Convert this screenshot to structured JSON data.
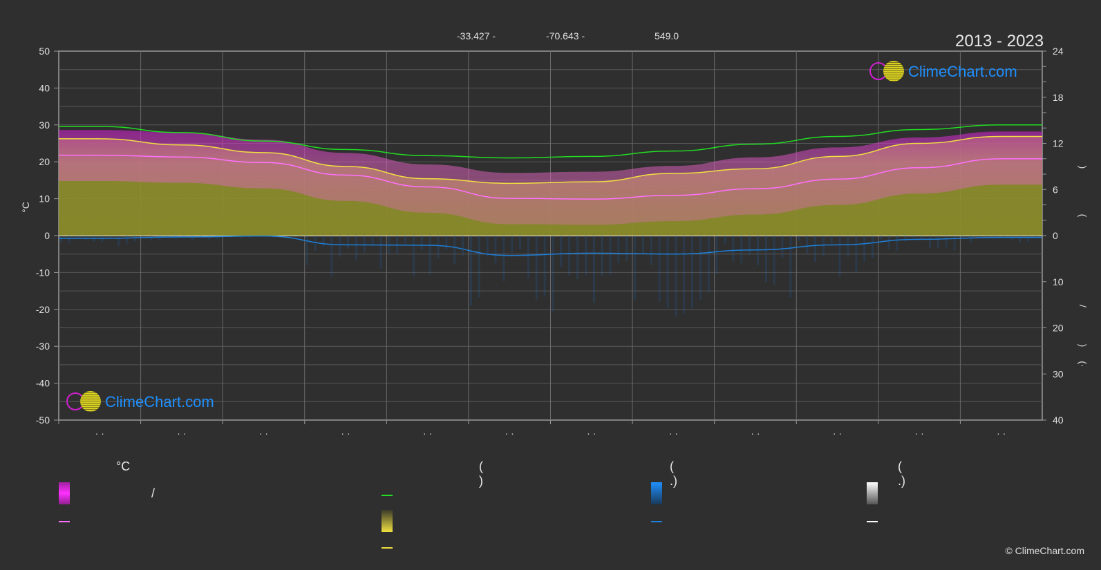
{
  "header": {
    "latitude": "-33.427 -",
    "longitude": "-70.643 -",
    "elevation": "549.0",
    "period": "2013 - 2023"
  },
  "axes": {
    "left_unit": "°C",
    "left_ticks": [
      "50",
      "40",
      "30",
      "20",
      "10",
      "0",
      "-10",
      "-20",
      "-30",
      "-40",
      "-50"
    ],
    "right_upper_ticks": [
      "24",
      "18",
      "12",
      "6",
      "0"
    ],
    "right_lower_ticks": [
      "10",
      "20",
      "30",
      "40"
    ],
    "right_label_glyphs": [
      ")",
      "(",
      "/",
      ")",
      "(·"
    ],
    "month_labels": [
      "· ·",
      "· ·",
      "· ·",
      "· ·",
      "· ·",
      "· ·",
      "· ·",
      "· ·",
      "· ·",
      "· ·",
      "· ·",
      "· ·"
    ]
  },
  "logo": {
    "text": "ClimeChart.com"
  },
  "legend": {
    "col1_head": "°C",
    "col1_row1_text": "/",
    "col2_head": "(          )",
    "col3_head": "(    .)",
    "col4_head": "(    .)"
  },
  "colors": {
    "background": "#2f2f2f",
    "daylight": "#22dd22",
    "sunshine_line": "#f0e040",
    "sunshine_fill": "#8a8a2a",
    "temp_band": "#c040c0",
    "temp_mean": "#ff70ff",
    "precip": "#1e7fd8",
    "snow": "#ffffff"
  },
  "copyright": "© ClimeChart.com",
  "chart_data": {
    "type": "line",
    "x": [
      0.5,
      1.5,
      2.5,
      3.5,
      4.5,
      5.5,
      6.5,
      7.5,
      8.5,
      9.5,
      10.5,
      11.5
    ],
    "ylim_left": [
      -50,
      50
    ],
    "ylim_right_hours": [
      0,
      24
    ],
    "ylim_right_mm": [
      0,
      40
    ],
    "series": [
      {
        "key": "daylight",
        "axis": "hours",
        "values": [
          14.2,
          13.4,
          12.3,
          11.2,
          10.4,
          10.1,
          10.3,
          11.0,
          11.9,
          12.9,
          13.8,
          14.4
        ]
      },
      {
        "key": "sunshine",
        "axis": "hours",
        "values": [
          12.6,
          11.8,
          10.8,
          9.0,
          7.4,
          6.8,
          7.0,
          8.1,
          8.7,
          10.3,
          12.0,
          12.9
        ]
      },
      {
        "key": "temp_mean",
        "axis": "temp",
        "values": [
          21.8,
          21.3,
          19.8,
          16.4,
          13.2,
          10.1,
          9.9,
          10.9,
          12.7,
          15.3,
          18.4,
          20.8
        ]
      },
      {
        "key": "temp_max",
        "axis": "temp",
        "values": [
          28.6,
          28.0,
          26.0,
          22.4,
          19.3,
          17.0,
          17.3,
          18.9,
          21.2,
          23.9,
          26.6,
          28.2
        ]
      },
      {
        "key": "precip",
        "axis": "mm",
        "values": [
          0.6,
          0.3,
          0.1,
          2.0,
          2.1,
          4.3,
          3.8,
          4.0,
          3.1,
          2.0,
          0.8,
          0.4
        ]
      }
    ]
  }
}
